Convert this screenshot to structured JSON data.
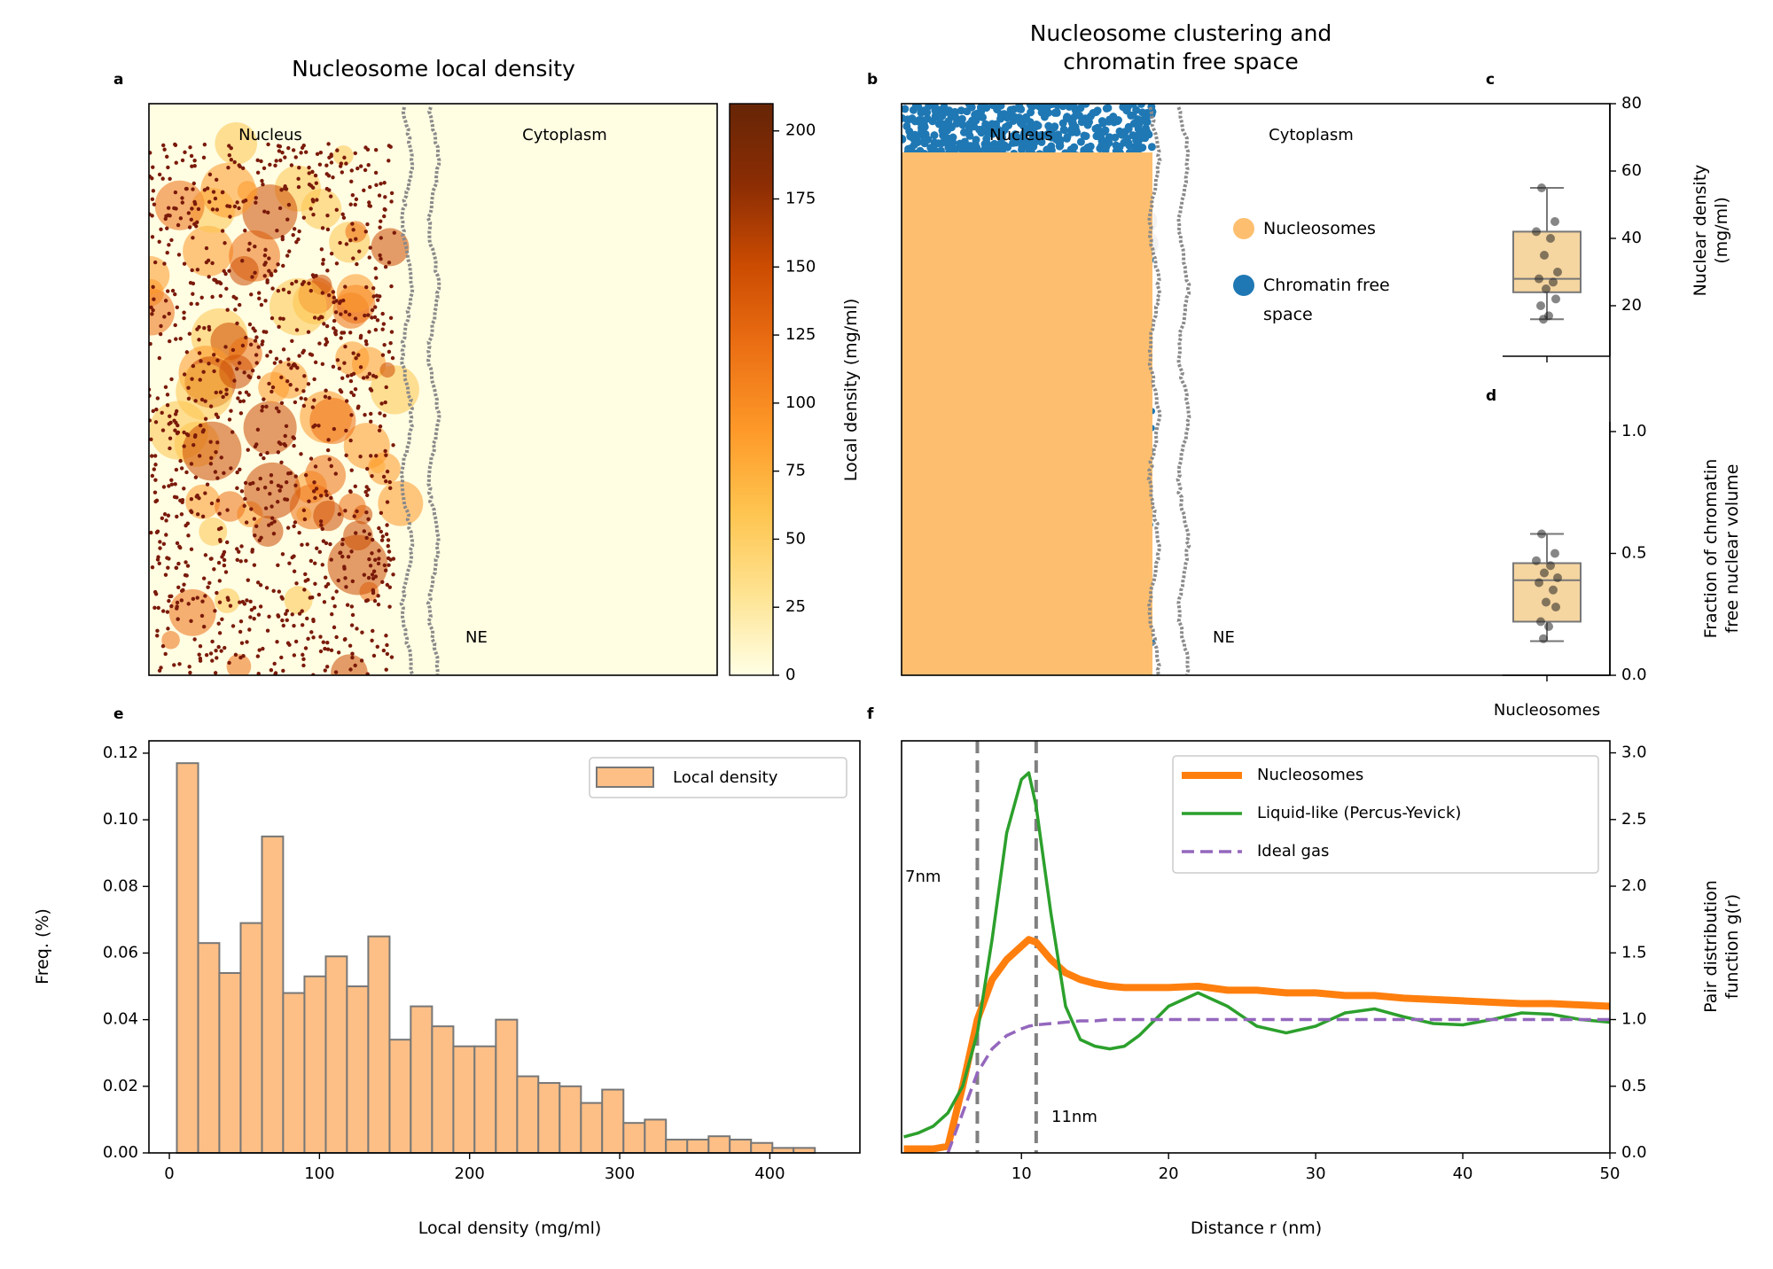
{
  "chart_data": [
    {
      "type": "image",
      "panel": "a",
      "title": "Nucleosome local density",
      "annotations": [
        "Nucleus",
        "Cytoplasm",
        "NE"
      ],
      "colorbar": {
        "label": "Local density (mg/ml)",
        "lim": [
          0,
          210
        ],
        "ticks": [
          0,
          25,
          50,
          75,
          100,
          125,
          150,
          175,
          200
        ],
        "colors": [
          "#ffffe5",
          "#fee391",
          "#fec44f",
          "#fe9929",
          "#ec7014",
          "#cc4c02",
          "#8c2d04",
          "#662506"
        ]
      }
    },
    {
      "type": "image",
      "panel": "b",
      "title": "Nucleosome clustering and chromatin free space",
      "annotations": [
        "Nucleus",
        "Cytoplasm",
        "NE"
      ],
      "legend": [
        {
          "name": "Nucleosomes",
          "color": "#fdbf6f"
        },
        {
          "name": "Chromatin free space",
          "color": "#1f78b4"
        }
      ]
    },
    {
      "type": "box",
      "panel": "c",
      "ylabel": "Nuclear density (mg/ml)",
      "categories": [
        null
      ],
      "ylim": [
        5,
        80
      ],
      "yticks": [
        20,
        40,
        60,
        80
      ],
      "yaxis_side": "right",
      "color": "#f5d5a0",
      "boxes": [
        {
          "whislo": 16,
          "q1": 24,
          "med": 28,
          "q3": 42,
          "whishi": 55
        }
      ],
      "points": [
        55,
        45,
        42,
        40,
        35,
        30,
        28,
        27,
        25,
        22,
        20,
        17,
        16
      ]
    },
    {
      "type": "box",
      "panel": "d",
      "ylabel": "Fraction of chromatin free nuclear volume",
      "categories": [
        "Nucleosomes"
      ],
      "ylim": [
        0,
        1.04
      ],
      "yticks": [
        {
          "value": 0,
          "label": "0.0"
        },
        0.5,
        {
          "value": 1,
          "label": "1.0"
        }
      ],
      "yaxis_side": "right",
      "color": "#f5d5a0",
      "boxes": [
        {
          "whislo": 0.14,
          "q1": 0.22,
          "med": 0.39,
          "q3": 0.46,
          "whishi": 0.58
        }
      ],
      "points": [
        0.58,
        0.5,
        0.47,
        0.45,
        0.42,
        0.4,
        0.38,
        0.35,
        0.3,
        0.28,
        0.22,
        0.2,
        0.15
      ]
    },
    {
      "type": "histogram",
      "panel": "e",
      "xlabel": "Local density (mg/ml)",
      "ylabel": "Freq. (%)",
      "xlim": [
        -13.6,
        460
      ],
      "xticks": [
        0,
        100,
        200,
        300,
        400
      ],
      "ylim": [
        0,
        0.1237
      ],
      "yticks": [
        {
          "value": 0,
          "label": "0.00"
        },
        0.02,
        0.04,
        0.06,
        0.08,
        {
          "value": 0.1,
          "label": "0.10"
        },
        0.12
      ],
      "bins": [
        5,
        19.2,
        33.3,
        47.5,
        61.7,
        75.8,
        90,
        104.2,
        118.3,
        132.5,
        146.7,
        160.8,
        175,
        189.2,
        203.3,
        217.5,
        231.7,
        245.8,
        260,
        274.2,
        288.3,
        302.5,
        316.7,
        330.8,
        345,
        359.2,
        373.3,
        387.5,
        401.7,
        415.8,
        430
      ],
      "series": [
        {
          "name": "Local density",
          "color": "#fdbf86",
          "values": [
            0.117,
            0.063,
            0.054,
            0.069,
            0.095,
            0.048,
            0.053,
            0.059,
            0.05,
            0.065,
            0.034,
            0.044,
            0.038,
            0.032,
            0.032,
            0.04,
            0.023,
            0.021,
            0.02,
            0.015,
            0.019,
            0.009,
            0.01,
            0.004,
            0.004,
            0.005,
            0.004,
            0.003,
            0.0015,
            0.0015
          ]
        }
      ],
      "legend_position": "upper right"
    },
    {
      "type": "line",
      "panel": "f",
      "xlabel": "Distance r (nm)",
      "ylabel": "Pair distribution function g(r)",
      "xlim": [
        1.85,
        50
      ],
      "xticks": [
        10,
        20,
        30,
        40,
        50
      ],
      "ylim": [
        0,
        3.09
      ],
      "yticks": [
        {
          "value": 0,
          "label": "0.0"
        },
        0.5,
        {
          "value": 1,
          "label": "1.0"
        },
        1.5,
        {
          "value": 2,
          "label": "2.0"
        },
        2.5,
        {
          "value": 3,
          "label": "3.0"
        }
      ],
      "yaxis_side": "right",
      "legend_position": "upper right",
      "x": [
        2,
        3,
        4,
        5,
        6,
        7,
        8,
        9,
        10,
        10.5,
        11,
        12,
        13,
        14,
        15,
        16,
        17,
        18,
        20,
        22,
        24,
        26,
        28,
        30,
        32,
        34,
        36,
        38,
        40,
        42,
        44,
        46,
        48,
        50
      ],
      "series": [
        {
          "name": "Nucleosomes",
          "color": "#ff7f0e",
          "linewidth": 8,
          "linestyle": "solid",
          "values": [
            0.03,
            0.03,
            0.03,
            0.05,
            0.5,
            1.0,
            1.3,
            1.45,
            1.55,
            1.6,
            1.58,
            1.45,
            1.35,
            1.3,
            1.27,
            1.25,
            1.24,
            1.24,
            1.24,
            1.25,
            1.22,
            1.22,
            1.2,
            1.2,
            1.18,
            1.18,
            1.16,
            1.15,
            1.14,
            1.13,
            1.12,
            1.12,
            1.11,
            1.1
          ]
        },
        {
          "name": "Liquid-like (Percus-Yevick)",
          "color": "#2ca02c",
          "linewidth": 3.5,
          "linestyle": "solid",
          "values": [
            0.12,
            0.15,
            0.2,
            0.3,
            0.5,
            0.9,
            1.6,
            2.4,
            2.8,
            2.85,
            2.6,
            1.8,
            1.1,
            0.85,
            0.8,
            0.78,
            0.8,
            0.88,
            1.1,
            1.2,
            1.1,
            0.95,
            0.9,
            0.95,
            1.05,
            1.08,
            1.02,
            0.97,
            0.96,
            1.0,
            1.05,
            1.04,
            1.0,
            0.98
          ]
        },
        {
          "name": "Ideal gas",
          "color": "#9467bd",
          "linewidth": 3.5,
          "linestyle": "dashed",
          "values": [
            null,
            null,
            null,
            0,
            0.3,
            0.6,
            0.78,
            0.88,
            0.93,
            0.95,
            0.96,
            0.97,
            0.98,
            0.99,
            0.99,
            1.0,
            1.0,
            1.0,
            1.0,
            1.0,
            1.0,
            1.0,
            1.0,
            1.0,
            1.0,
            1.0,
            1.0,
            1.0,
            1.0,
            1.0,
            1.0,
            1.0,
            1.0,
            1.0
          ]
        }
      ],
      "vlines": [
        {
          "value": 7,
          "label": "7nm"
        },
        {
          "value": 11,
          "label": "11nm"
        }
      ]
    }
  ]
}
